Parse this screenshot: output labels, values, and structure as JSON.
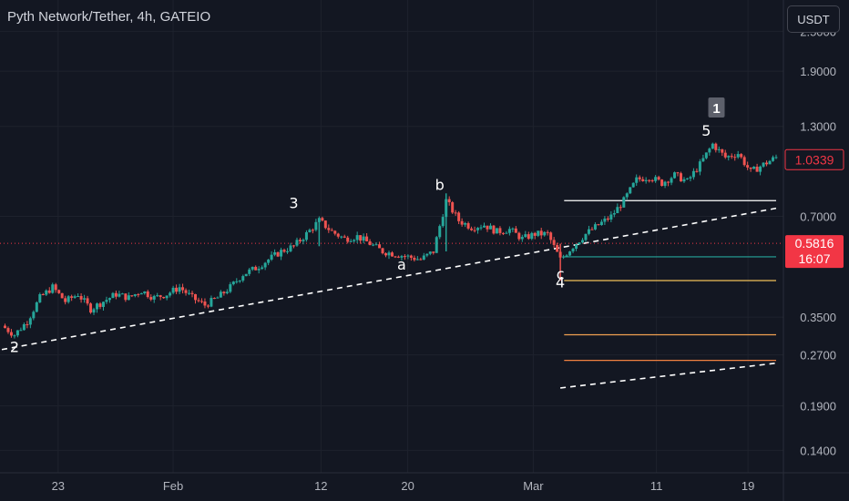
{
  "header": {
    "title": "Pyth Network/Tether, 4h, GATEIO",
    "unit_button": "USDT"
  },
  "colors": {
    "background": "#131722",
    "up": "#26a69a",
    "down": "#ef5350",
    "grid": "#1e222d",
    "current_price_line": "#f23645",
    "last_price_tag": "#f23645"
  },
  "chart_data": {
    "type": "candlestick",
    "title": "Pyth Network/Tether, 4h, GATEIO",
    "y_scale": "log",
    "yticks": [
      2.5,
      1.9,
      1.3,
      0.7,
      0.35,
      0.27,
      0.19,
      0.14
    ],
    "ytick_labels": [
      "2.5000",
      "1.9000",
      "1.3000",
      "0.7000",
      "0.3500",
      "0.2700",
      "0.1900",
      "0.1400"
    ],
    "xtick_labels": [
      "23",
      "Feb",
      "12",
      "20",
      "Mar",
      "11",
      "19"
    ],
    "ylim": [
      0.12,
      3.1
    ],
    "current_price": 0.5816,
    "current_price_label": "0.5816",
    "countdown": "16:07",
    "last_price": 1.0339,
    "last_price_label": "1.0339",
    "path_points": [
      [
        0,
        0.33
      ],
      [
        1,
        0.31
      ],
      [
        2,
        0.34
      ],
      [
        3,
        0.4
      ],
      [
        4,
        0.43
      ],
      [
        5,
        0.39
      ],
      [
        6,
        0.41
      ],
      [
        7,
        0.37
      ],
      [
        8,
        0.39
      ],
      [
        9,
        0.41
      ],
      [
        10,
        0.4
      ],
      [
        11,
        0.42
      ],
      [
        12,
        0.4
      ],
      [
        13,
        0.41
      ],
      [
        14,
        0.43
      ],
      [
        15,
        0.4
      ],
      [
        16,
        0.38
      ],
      [
        17,
        0.4
      ],
      [
        18,
        0.43
      ],
      [
        19,
        0.47
      ],
      [
        20,
        0.49
      ],
      [
        21,
        0.52
      ],
      [
        22,
        0.55
      ],
      [
        23,
        0.57
      ],
      [
        24,
        0.62
      ],
      [
        25,
        0.68
      ],
      [
        26,
        0.63
      ],
      [
        27,
        0.6
      ],
      [
        28,
        0.61
      ],
      [
        29,
        0.58
      ],
      [
        30,
        0.55
      ],
      [
        31,
        0.54
      ],
      [
        32,
        0.53
      ],
      [
        33,
        0.52
      ],
      [
        34,
        0.55
      ],
      [
        35,
        0.78
      ],
      [
        36,
        0.68
      ],
      [
        37,
        0.65
      ],
      [
        38,
        0.66
      ],
      [
        39,
        0.63
      ],
      [
        40,
        0.64
      ],
      [
        41,
        0.6
      ],
      [
        42,
        0.62
      ],
      [
        43,
        0.62
      ],
      [
        44,
        0.52
      ],
      [
        45,
        0.57
      ],
      [
        46,
        0.62
      ],
      [
        47,
        0.66
      ],
      [
        48,
        0.7
      ],
      [
        49,
        0.78
      ],
      [
        50,
        0.9
      ],
      [
        51,
        0.92
      ],
      [
        52,
        0.88
      ],
      [
        53,
        0.93
      ],
      [
        54,
        0.89
      ],
      [
        55,
        1.0
      ],
      [
        56,
        1.15
      ],
      [
        57,
        1.05
      ],
      [
        58,
        1.08
      ],
      [
        59,
        0.95
      ],
      [
        60,
        1.0
      ],
      [
        61,
        1.05
      ]
    ],
    "wave_labels": [
      "2",
      "3",
      "a",
      "b",
      "c",
      "4",
      "5"
    ],
    "box_label": "1",
    "fib_levels": [
      0.78,
      0.53,
      0.45,
      0.31,
      0.26
    ],
    "fib_colors": [
      "#ffffff",
      "#26a69a",
      "#f0c05a",
      "#f0a050",
      "#f08040"
    ],
    "trendlines": [
      {
        "from": [
          0,
          0.28
        ],
        "to": [
          61,
          0.74
        ]
      },
      {
        "from": [
          44,
          0.215
        ],
        "to": [
          61,
          0.255
        ]
      }
    ]
  }
}
